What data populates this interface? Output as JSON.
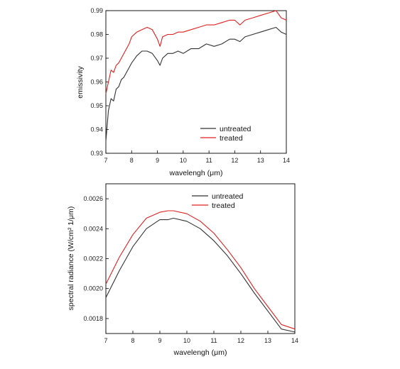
{
  "colors": {
    "untreated": "#333333",
    "treated": "#e02020"
  },
  "chart_data": [
    {
      "type": "line",
      "xlabel": "wavelengh (μm)",
      "ylabel": "emissivity",
      "xlim": [
        7,
        14
      ],
      "ylim": [
        0.93,
        0.99
      ],
      "x_ticks": [
        7,
        8,
        9,
        10,
        11,
        12,
        13,
        14
      ],
      "x_tick_labels": [
        "7",
        "8",
        "9",
        "10",
        "11",
        "12",
        "13",
        "14"
      ],
      "y_ticks": [
        0.93,
        0.94,
        0.95,
        0.96,
        0.97,
        0.98,
        0.99
      ],
      "y_tick_labels": [
        "0.93",
        "0.94",
        "0.95",
        "0.96",
        "0.97",
        "0.98",
        "0.99"
      ],
      "legend_position": "lower-right",
      "grid": false,
      "series": [
        {
          "name": "untreated",
          "color": "#333333",
          "x": [
            7.0,
            7.1,
            7.2,
            7.3,
            7.4,
            7.5,
            7.6,
            7.7,
            7.8,
            7.9,
            8.0,
            8.2,
            8.4,
            8.6,
            8.8,
            9.0,
            9.1,
            9.2,
            9.4,
            9.6,
            9.8,
            10.0,
            10.3,
            10.6,
            10.9,
            11.2,
            11.5,
            11.8,
            12.0,
            12.2,
            12.4,
            12.7,
            13.0,
            13.3,
            13.6,
            13.8,
            14.0
          ],
          "y": [
            0.935,
            0.948,
            0.953,
            0.952,
            0.957,
            0.958,
            0.961,
            0.962,
            0.964,
            0.966,
            0.968,
            0.971,
            0.973,
            0.973,
            0.972,
            0.969,
            0.967,
            0.97,
            0.972,
            0.972,
            0.973,
            0.972,
            0.974,
            0.974,
            0.976,
            0.975,
            0.976,
            0.978,
            0.978,
            0.977,
            0.979,
            0.98,
            0.981,
            0.982,
            0.983,
            0.981,
            0.98
          ]
        },
        {
          "name": "treated",
          "color": "#e02020",
          "x": [
            7.0,
            7.1,
            7.2,
            7.3,
            7.4,
            7.5,
            7.6,
            7.7,
            7.8,
            7.9,
            8.0,
            8.2,
            8.4,
            8.6,
            8.8,
            9.0,
            9.1,
            9.2,
            9.4,
            9.6,
            9.8,
            10.0,
            10.3,
            10.6,
            10.9,
            11.2,
            11.5,
            11.8,
            12.0,
            12.2,
            12.4,
            12.7,
            13.0,
            13.3,
            13.6,
            13.8,
            14.0
          ],
          "y": [
            0.955,
            0.96,
            0.965,
            0.964,
            0.967,
            0.968,
            0.97,
            0.972,
            0.974,
            0.976,
            0.979,
            0.981,
            0.982,
            0.983,
            0.982,
            0.978,
            0.975,
            0.979,
            0.98,
            0.98,
            0.981,
            0.981,
            0.982,
            0.983,
            0.984,
            0.984,
            0.985,
            0.986,
            0.986,
            0.984,
            0.986,
            0.987,
            0.988,
            0.989,
            0.99,
            0.987,
            0.986
          ]
        }
      ]
    },
    {
      "type": "line",
      "xlabel": "wavelengh (μm)",
      "ylabel": "spectral radiance (W/cm² 1/μm)",
      "xlim": [
        7,
        14
      ],
      "ylim": [
        0.0017,
        0.0027
      ],
      "x_ticks": [
        7,
        8,
        9,
        10,
        11,
        12,
        13,
        14
      ],
      "x_tick_labels": [
        "7",
        "8",
        "9",
        "10",
        "11",
        "12",
        "13",
        "14"
      ],
      "y_ticks": [
        0.0018,
        0.002,
        0.0022,
        0.0024,
        0.0026
      ],
      "y_tick_labels": [
        "0.0018",
        "0.0020",
        "0.0022",
        "0.0024",
        "0.0026"
      ],
      "legend_position": "top-right",
      "grid": false,
      "series": [
        {
          "name": "untreated",
          "color": "#333333",
          "x": [
            7.0,
            7.5,
            8.0,
            8.5,
            9.0,
            9.3,
            9.5,
            10.0,
            10.5,
            11.0,
            11.5,
            12.0,
            12.5,
            13.0,
            13.5,
            14.0
          ],
          "y": [
            0.00194,
            0.00212,
            0.00228,
            0.0024,
            0.00246,
            0.00246,
            0.00247,
            0.00245,
            0.0024,
            0.00232,
            0.00222,
            0.0021,
            0.00197,
            0.00185,
            0.00173,
            0.00171
          ]
        },
        {
          "name": "treated",
          "color": "#e02020",
          "x": [
            7.0,
            7.5,
            8.0,
            8.5,
            9.0,
            9.3,
            9.5,
            10.0,
            10.5,
            11.0,
            11.5,
            12.0,
            12.5,
            13.0,
            13.5,
            14.0
          ],
          "y": [
            0.00203,
            0.00221,
            0.00236,
            0.00247,
            0.00251,
            0.00252,
            0.00252,
            0.0025,
            0.00245,
            0.00237,
            0.00226,
            0.00214,
            0.002,
            0.00188,
            0.00176,
            0.00173
          ]
        }
      ]
    }
  ]
}
